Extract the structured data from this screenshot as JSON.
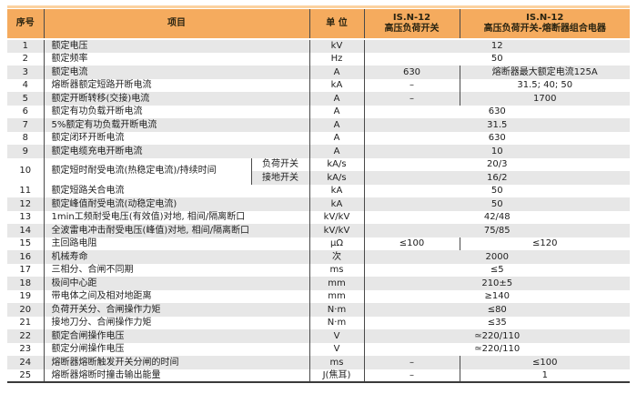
{
  "table": {
    "columns": {
      "no": "序号",
      "item": "项目",
      "unit": "单 位",
      "switch_line1": "IS.N-12",
      "switch_line2": "高压负荷开关",
      "combo_line1": "IS.N-12",
      "combo_line2": "高压负荷开关-熔断器组合电器"
    },
    "rows": [
      {
        "no": "1",
        "item": "额定电压",
        "unit": "kV",
        "span": "12",
        "shade": "gray"
      },
      {
        "no": "2",
        "item": "额定频率",
        "unit": "Hz",
        "span": "50",
        "shade": "white"
      },
      {
        "no": "3",
        "item": "额定电流",
        "unit": "A",
        "switch_value": "630",
        "combo_value": "熔断器最大额定电流125A",
        "shade": "gray"
      },
      {
        "no": "4",
        "item": "熔断器额定短路开断电流",
        "unit": "kA",
        "switch_value": "–",
        "combo_value": "31.5; 40; 50",
        "shade": "white"
      },
      {
        "no": "5",
        "item": "额定开断转移(交接)电流",
        "unit": "A",
        "switch_value": "–",
        "combo_value": "1700",
        "shade": "gray"
      },
      {
        "no": "6",
        "item": "额定有功负载开断电流",
        "unit": "A",
        "span": "630",
        "shade": "white"
      },
      {
        "no": "7",
        "item": "5%额定有功负载开断电流",
        "unit": "A",
        "span": "31.5",
        "shade": "gray"
      },
      {
        "no": "8",
        "item": "额定闭环开断电流",
        "unit": "A",
        "span": "630",
        "shade": "white"
      },
      {
        "no": "9",
        "item": "额定电缆充电开断电流",
        "unit": "A",
        "span": "10",
        "shade": "gray"
      },
      {
        "no": "10",
        "item": "额定短时耐受电流(热稳定电流)/持续时间",
        "shade": "white",
        "sub": [
          {
            "label": "负荷开关",
            "unit": "kA/s",
            "span": "20/3",
            "shade": "white"
          },
          {
            "label": "接地开关",
            "unit": "kA/s",
            "span": "16/2",
            "shade": "gray"
          }
        ]
      },
      {
        "no": "11",
        "item": "额定短路关合电流",
        "unit": "kA",
        "span": "50",
        "shade": "white"
      },
      {
        "no": "12",
        "item": "额定峰值耐受电流(动稳定电流)",
        "unit": "kA",
        "span": "50",
        "shade": "gray"
      },
      {
        "no": "13",
        "item": "1min工频耐受电压(有效值)对地, 相间/隔离断口",
        "unit": "kV/kV",
        "span": "42/48",
        "shade": "white"
      },
      {
        "no": "14",
        "item": "全波雷电冲击耐受电压(峰值)对地, 相间/隔离断口",
        "unit": "kV/kV",
        "span": "75/85",
        "shade": "gray"
      },
      {
        "no": "15",
        "item": "主回路电阻",
        "unit": "μΩ",
        "switch_value": "≤100",
        "combo_value": "≤120",
        "shade": "white"
      },
      {
        "no": "16",
        "item": "机械寿命",
        "unit": "次",
        "span": "2000",
        "shade": "gray"
      },
      {
        "no": "17",
        "item": "三相分、合闸不同期",
        "unit": "ms",
        "span": "≤5",
        "shade": "white"
      },
      {
        "no": "18",
        "item": "极间中心距",
        "unit": "mm",
        "span": "210±5",
        "shade": "gray"
      },
      {
        "no": "19",
        "item": "带电体之间及相对地距离",
        "unit": "mm",
        "span": "≥140",
        "shade": "white"
      },
      {
        "no": "20",
        "item": "负荷开关分、合闸操作力矩",
        "unit": "N·m",
        "span": "≤80",
        "shade": "gray"
      },
      {
        "no": "21",
        "item": "接地刀分、合闸操作力矩",
        "unit": "N·m",
        "span": "≤35",
        "shade": "white"
      },
      {
        "no": "22",
        "item": "额定合闸操作电压",
        "unit": "V",
        "span": "≃220/110",
        "shade": "gray"
      },
      {
        "no": "23",
        "item": "额定分闸操作电压",
        "unit": "V",
        "span": "≃220/110",
        "shade": "white"
      },
      {
        "no": "24",
        "item": "熔断器熔断触发开关分闸的时间",
        "unit": "ms",
        "switch_value": "–",
        "combo_value": "≤100",
        "shade": "gray"
      },
      {
        "no": "25",
        "item": "熔断器熔断时撞击输出能量",
        "unit": "J(焦耳)",
        "switch_value": "–",
        "combo_value": "1",
        "shade": "white"
      }
    ]
  },
  "colors": {
    "header_bg": "#F5AB5E",
    "header_top_strip": "#FBD2A0",
    "row_gray": "#E7E7E7",
    "row_white": "#FFFFFF",
    "grid_line": "#4A4A4A",
    "bottom_border": "#3A3A3A",
    "text": "#1E1E1E"
  }
}
